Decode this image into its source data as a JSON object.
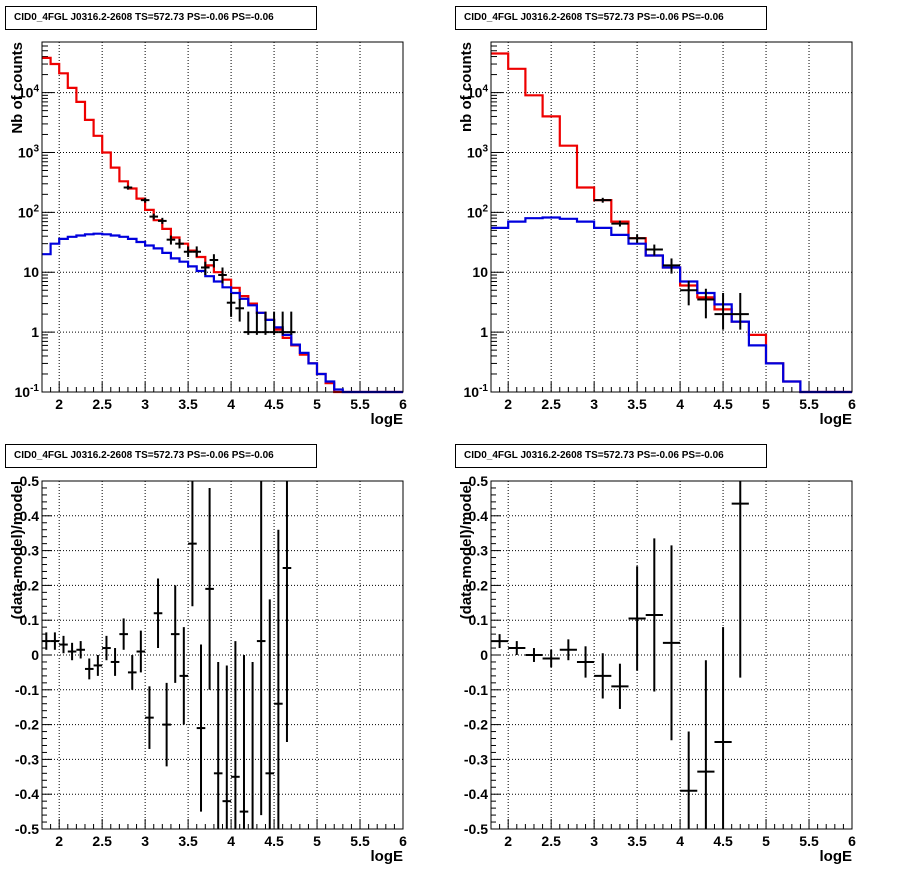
{
  "chart_data": [
    {
      "type": "line",
      "title": "CID0_4FGL J0316.2-2608 TS=572.73 PS=-0.06 PS=-0.06",
      "xlabel": "logE",
      "ylabel": "Nb of counts",
      "xlim": [
        1.8,
        6
      ],
      "ylim": [
        0.1,
        70000
      ],
      "yscale": "log",
      "grid": true,
      "x_ticks": [
        "2",
        "2.5",
        "3",
        "3.5",
        "4",
        "4.5",
        "5",
        "5.5",
        "6"
      ],
      "y_ticks": [
        "10^{-1}",
        "1",
        "10",
        "10^{2}",
        "10^{3}",
        "10^{4}"
      ],
      "series": [
        {
          "style": "step",
          "color": "#ee0000",
          "bin_edges": [
            1.8,
            1.9,
            2.0,
            2.1,
            2.2,
            2.3,
            2.4,
            2.5,
            2.6,
            2.7,
            2.8,
            2.9,
            3.0,
            3.1,
            3.2,
            3.3,
            3.4,
            3.5,
            3.6,
            3.7,
            3.8,
            3.9,
            4.0,
            4.1,
            4.2,
            4.3,
            4.4,
            4.5,
            4.6,
            4.7,
            4.8,
            4.9,
            5.0,
            5.1,
            5.2,
            5.3,
            5.4,
            5.5,
            5.6,
            5.7,
            5.8,
            5.9,
            6.0
          ],
          "values": [
            38000,
            30000,
            21000,
            12000,
            7000,
            3500,
            1900,
            1000,
            560,
            330,
            250,
            170,
            110,
            74,
            53,
            38,
            30,
            23,
            18,
            13,
            10,
            7.5,
            5.5,
            4,
            3,
            2.1,
            1.6,
            1.1,
            0.8,
            0.6,
            0.42,
            0.3,
            0.2,
            0.14,
            0.1,
            0.1,
            0.1,
            0.1,
            0.1,
            0.1,
            0.1,
            0.1
          ]
        },
        {
          "style": "step",
          "color": "#0000dd",
          "bin_edges": [
            1.8,
            1.9,
            2.0,
            2.1,
            2.2,
            2.3,
            2.4,
            2.5,
            2.6,
            2.7,
            2.8,
            2.9,
            3.0,
            3.1,
            3.2,
            3.3,
            3.4,
            3.5,
            3.6,
            3.7,
            3.8,
            3.9,
            4.0,
            4.1,
            4.2,
            4.3,
            4.4,
            4.5,
            4.6,
            4.7,
            4.8,
            4.9,
            5.0,
            5.1,
            5.2,
            5.3,
            5.4,
            5.5,
            5.6,
            5.7,
            5.8,
            5.9,
            6.0
          ],
          "values": [
            20,
            30,
            36,
            39,
            41,
            43,
            44,
            43,
            41,
            39,
            36,
            32,
            28,
            25,
            21,
            17,
            15,
            12.5,
            10.5,
            8.6,
            7,
            5.6,
            4.5,
            3.6,
            2.8,
            2.1,
            1.6,
            1.2,
            0.9,
            0.62,
            0.45,
            0.3,
            0.2,
            0.15,
            0.11,
            0.1,
            0.1,
            0.1,
            0.1,
            0.1,
            0.1,
            0.1
          ]
        },
        {
          "style": "errorbar",
          "color": "#000000",
          "x": [
            2.8,
            3.0,
            3.1,
            3.2,
            3.3,
            3.4,
            3.5,
            3.6,
            3.7,
            3.8,
            3.9,
            4.0,
            4.1,
            4.2,
            4.3,
            4.4,
            4.5,
            4.6,
            4.7
          ],
          "y": [
            260,
            160,
            85,
            72,
            35,
            30,
            22,
            22,
            12,
            16,
            9,
            3.1,
            2.5,
            1.0,
            1.0,
            1.0,
            1.0,
            1.0,
            1.0
          ],
          "xerr": 0.05,
          "yerr_lo": [
            240,
            145,
            76,
            64,
            29,
            25,
            18,
            18,
            9,
            12,
            6.5,
            1.8,
            1.5,
            0.9,
            0.9,
            0.9,
            0.9,
            0.9,
            0.9
          ],
          "yerr_hi": [
            280,
            175,
            95,
            81,
            41,
            36,
            27,
            27,
            15,
            20,
            12,
            4.5,
            3.6,
            2.2,
            2.2,
            2.2,
            2.2,
            2.2,
            2.2
          ]
        }
      ]
    },
    {
      "type": "line",
      "title": "CID0_4FGL J0316.2-2608 TS=572.73 PS=-0.06 PS=-0.06",
      "xlabel": "logE",
      "ylabel": "nb of counts",
      "xlim": [
        1.8,
        6
      ],
      "ylim": [
        0.1,
        70000
      ],
      "yscale": "log",
      "grid": true,
      "x_ticks": [
        "2",
        "2.5",
        "3",
        "3.5",
        "4",
        "4.5",
        "5",
        "5.5",
        "6"
      ],
      "y_ticks": [
        "10^{-1}",
        "1",
        "10",
        "10^{2}",
        "10^{3}",
        "10^{4}"
      ],
      "series": [
        {
          "style": "step",
          "color": "#ee0000",
          "bin_edges": [
            1.8,
            2.0,
            2.2,
            2.4,
            2.6,
            2.8,
            3.0,
            3.2,
            3.4,
            3.6,
            3.8,
            4.0,
            4.2,
            4.4,
            4.6,
            4.8,
            5.0,
            5.2,
            5.4,
            5.6,
            5.8,
            6.0
          ],
          "values": [
            45000,
            25000,
            9000,
            4000,
            1300,
            260,
            160,
            70,
            37,
            19,
            12,
            6,
            3.8,
            2.4,
            1.5,
            0.9,
            0.3,
            0.15,
            0.1,
            0.1,
            0.1
          ],
          "x_note": ""
        },
        {
          "style": "step",
          "color": "#0000dd",
          "bin_edges": [
            1.8,
            2.0,
            2.2,
            2.4,
            2.6,
            2.8,
            3.0,
            3.2,
            3.4,
            3.6,
            3.8,
            4.0,
            4.2,
            4.4,
            4.6,
            4.8,
            5.0,
            5.2,
            5.4,
            5.6,
            5.8,
            6.0
          ],
          "values": [
            55,
            70,
            80,
            82,
            78,
            70,
            55,
            42,
            30,
            19,
            12,
            7,
            4.5,
            2.9,
            1.5,
            0.6,
            0.3,
            0.15,
            0.1,
            0.1,
            0.1
          ]
        },
        {
          "style": "errorbar",
          "color": "#000000",
          "x": [
            3.1,
            3.3,
            3.5,
            3.7,
            3.9,
            4.1,
            4.3,
            4.5,
            4.7
          ],
          "y": [
            160,
            65,
            37,
            24,
            13,
            5,
            3.5,
            2.0,
            2.0
          ],
          "xerr": 0.1,
          "yerr_lo": [
            145,
            58,
            31,
            19,
            9.5,
            2.8,
            1.7,
            1.1,
            1.1
          ],
          "yerr_hi": [
            175,
            73,
            43,
            29,
            17,
            7.2,
            5.3,
            4.5,
            4.5
          ]
        }
      ]
    },
    {
      "type": "scatter",
      "title": "CID0_4FGL J0316.2-2608 TS=572.73 PS=-0.06 PS=-0.06",
      "xlabel": "logE",
      "ylabel": "(data-model)/model",
      "xlim": [
        1.8,
        6
      ],
      "ylim": [
        -0.5,
        0.5
      ],
      "grid": true,
      "x_ticks": [
        "2",
        "2.5",
        "3",
        "3.5",
        "4",
        "4.5",
        "5",
        "5.5",
        "6"
      ],
      "y_ticks": [
        "-0.5",
        "-0.4",
        "-0.3",
        "-0.2",
        "-0.1",
        "0",
        "0.1",
        "0.2",
        "0.3",
        "0.4",
        "0.5"
      ],
      "series": [
        {
          "style": "errorbar",
          "color": "#000000",
          "x": [
            1.85,
            1.95,
            2.05,
            2.15,
            2.25,
            2.35,
            2.45,
            2.55,
            2.65,
            2.75,
            2.85,
            2.95,
            3.05,
            3.15,
            3.25,
            3.35,
            3.45,
            3.55,
            3.65,
            3.75,
            3.85,
            3.95,
            4.05,
            4.15,
            4.25,
            4.35,
            4.45,
            4.55,
            4.65
          ],
          "y": [
            0.04,
            0.04,
            0.03,
            0.01,
            0.015,
            -0.04,
            -0.03,
            0.02,
            -0.02,
            0.06,
            -0.05,
            0.01,
            -0.18,
            0.12,
            -0.2,
            0.06,
            -0.06,
            0.32,
            -0.21,
            0.19,
            -0.34,
            -0.42,
            -0.35,
            -0.45,
            -0.52,
            0.04,
            -0.34,
            -0.14,
            0.25
          ],
          "xerr": 0.05,
          "yerr": [
            0.025,
            0.025,
            0.025,
            0.025,
            0.025,
            0.03,
            0.03,
            0.035,
            0.04,
            0.045,
            0.05,
            0.06,
            0.09,
            0.1,
            0.12,
            0.14,
            0.14,
            0.18,
            0.24,
            0.29,
            0.32,
            0.39,
            0.39,
            0.45,
            0.5,
            0.5,
            0.5,
            0.5,
            0.5
          ]
        }
      ]
    },
    {
      "type": "scatter",
      "title": "CID0_4FGL J0316.2-2608 TS=572.73 PS=-0.06 PS=-0.06",
      "xlabel": "logE",
      "ylabel": "(data-model)/model",
      "xlim": [
        1.8,
        6
      ],
      "ylim": [
        -0.5,
        0.5
      ],
      "grid": true,
      "x_ticks": [
        "2",
        "2.5",
        "3",
        "3.5",
        "4",
        "4.5",
        "5",
        "5.5",
        "6"
      ],
      "y_ticks": [
        "-0.5",
        "-0.4",
        "-0.3",
        "-0.2",
        "-0.1",
        "0",
        "0.1",
        "0.2",
        "0.3",
        "0.4",
        "0.5"
      ],
      "series": [
        {
          "style": "errorbar",
          "color": "#000000",
          "x": [
            1.9,
            2.1,
            2.3,
            2.5,
            2.7,
            2.9,
            3.1,
            3.3,
            3.5,
            3.7,
            3.9,
            4.1,
            4.3,
            4.5,
            4.7
          ],
          "y": [
            0.04,
            0.02,
            0.0,
            -0.01,
            0.015,
            -0.02,
            -0.06,
            -0.09,
            0.105,
            0.115,
            0.035,
            -0.39,
            -0.335,
            -0.25,
            0.435
          ],
          "xerr": 0.1,
          "yerr": [
            0.02,
            0.02,
            0.02,
            0.025,
            0.03,
            0.045,
            0.065,
            0.065,
            0.15,
            0.22,
            0.28,
            0.17,
            0.32,
            0.33,
            0.5
          ]
        }
      ]
    }
  ]
}
